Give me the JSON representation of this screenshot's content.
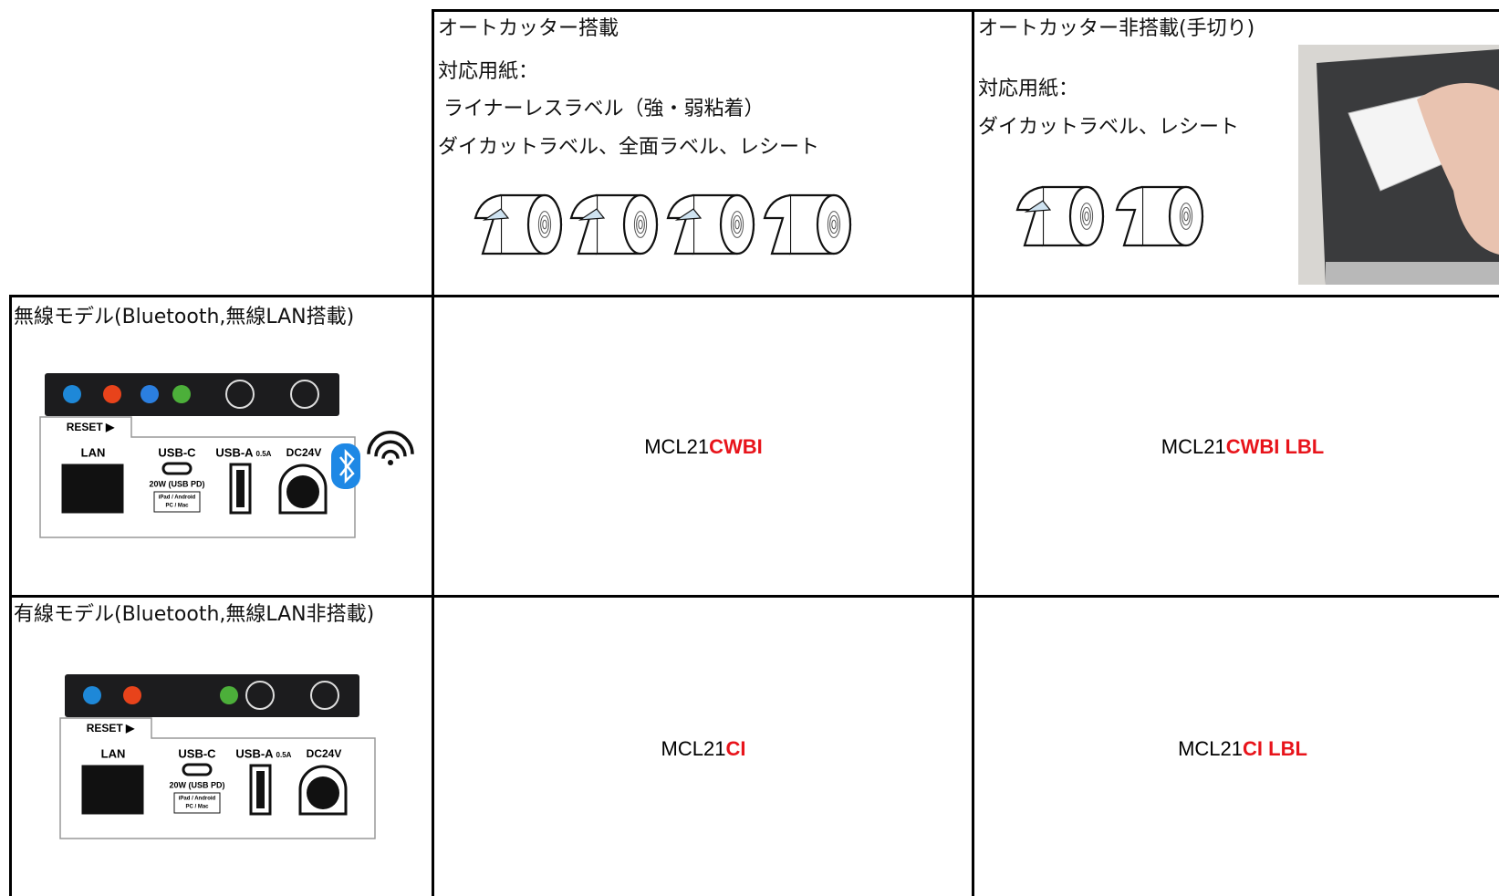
{
  "table": {
    "columns": [
      {
        "title": "オートカッター搭載",
        "paper_label": "対応用紙：",
        "paper_lines": [
          "ライナーレスラベル（強・弱粘着）",
          "ダイカットラベル、全面ラベル、レシート"
        ]
      },
      {
        "title": "オートカッター非搭載(手切り)",
        "paper_label": "対応用紙：",
        "paper_lines": [
          "ダイカットラベル、レシート"
        ]
      }
    ],
    "rows": [
      {
        "label": "無線モデル(Bluetooth,無線LAN搭載)",
        "models": [
          {
            "prefix": "MCL21",
            "suffix": "CWBI"
          },
          {
            "prefix": "MCL21",
            "suffix": "CWBI LBL"
          }
        ]
      },
      {
        "label": "有線モデル(Bluetooth,無線LAN非搭載)",
        "models": [
          {
            "prefix": "MCL21",
            "suffix": "CI"
          },
          {
            "prefix": "MCL21",
            "suffix": "CI LBL"
          }
        ]
      }
    ],
    "panel_labels": {
      "reset": "RESET ▶",
      "lan": "LAN",
      "usb_c": "USB-C",
      "usb_c_power": "20W (USB PD)",
      "usb_c_devices_1": "iPad / Android",
      "usb_c_devices_2": "PC / Mac",
      "usb_a": "USB-A",
      "usb_a_current": "0.5A",
      "dc": "DC24V"
    }
  }
}
